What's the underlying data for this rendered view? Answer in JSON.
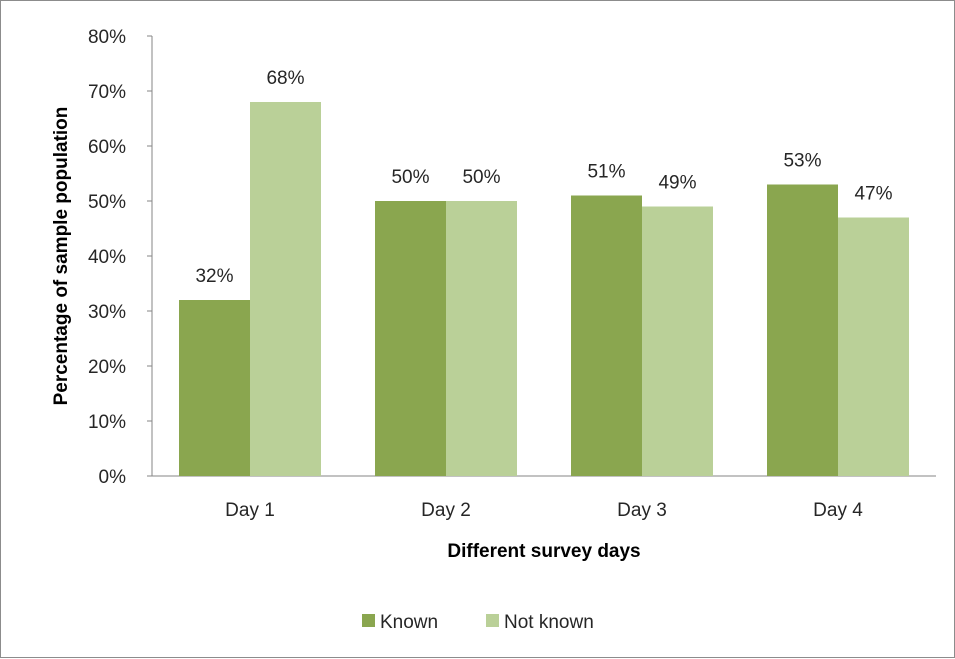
{
  "chart_data": {
    "type": "bar",
    "title": "",
    "xlabel": "Different survey days",
    "ylabel": "Percentage of sample population",
    "categories": [
      "Day 1",
      "Day 2",
      "Day 3",
      "Day 4"
    ],
    "series": [
      {
        "name": "Known",
        "values": [
          32,
          50,
          51,
          53
        ],
        "labels": [
          "32%",
          "50%",
          "51%",
          "53%"
        ],
        "color": "#8aa64f"
      },
      {
        "name": "Not known",
        "values": [
          68,
          50,
          49,
          47
        ],
        "labels": [
          "68%",
          "50%",
          "49%",
          "47%"
        ],
        "color": "#bad098"
      }
    ],
    "ylim": [
      0,
      80
    ],
    "yticks": [
      0,
      10,
      20,
      30,
      40,
      50,
      60,
      70,
      80
    ],
    "ytick_labels": [
      "0%",
      "10%",
      "20%",
      "30%",
      "40%",
      "50%",
      "60%",
      "70%",
      "80%"
    ],
    "grid": false,
    "legend_position": "bottom"
  }
}
